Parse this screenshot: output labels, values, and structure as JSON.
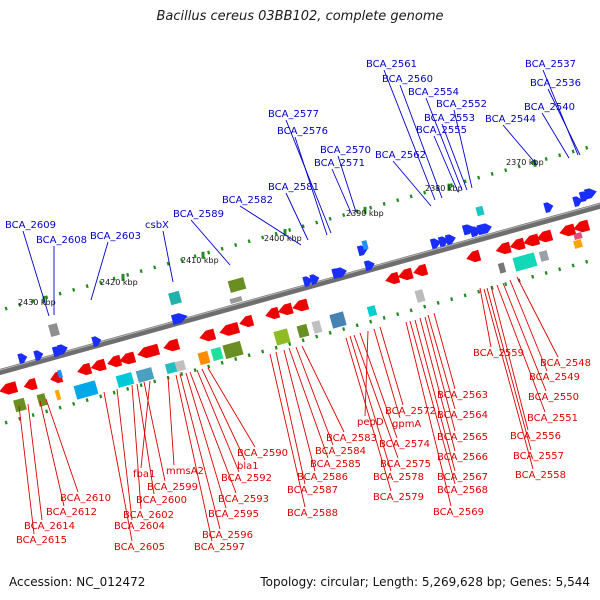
{
  "title": "Bacillus cereus 03BB102, complete genome",
  "footer": {
    "accession": "Accession: NC_012472",
    "topology": "Topology: circular; Length: 5,269,628 bp; Genes: 5,544"
  },
  "colors": {
    "forward_label": "#0000cc",
    "reverse_label": "#dd0000",
    "forward_feature": "#1a2fff",
    "reverse_feature": "#ee0000",
    "tick": "#228b22",
    "axis": "#777777"
  },
  "scale_labels": [
    "2370 kbp",
    "2380 kbp",
    "2390 kbp",
    "2400 kbp",
    "2410 kbp",
    "2420 kbp",
    "2430 kbp"
  ],
  "forward_labels": [
    "BCA_2537",
    "BCA_2536",
    "BCA_2540",
    "BCA_2544",
    "BCA_2561",
    "BCA_2560",
    "BCA_2554",
    "BCA_2552",
    "BCA_2553",
    "BCA_2555",
    "BCA_2562",
    "BCA_2577",
    "BCA_2576",
    "BCA_2570",
    "BCA_2571",
    "BCA_2581",
    "BCA_2582",
    "BCA_2589",
    "csbX",
    "BCA_2603",
    "BCA_2609",
    "BCA_2608"
  ],
  "reverse_labels": [
    "BCA_2559",
    "BCA_2548",
    "BCA_2549",
    "BCA_2550",
    "BCA_2551",
    "BCA_2556",
    "BCA_2557",
    "BCA_2558",
    "BCA_2563",
    "BCA_2564",
    "BCA_2565",
    "BCA_2566",
    "BCA_2567",
    "BCA_2568",
    "BCA_2569",
    "BCA_2572",
    "pepD",
    "gpmA",
    "BCA_2574",
    "BCA_2575",
    "BCA_2578",
    "BCA_2579",
    "BCA_2583",
    "BCA_2584",
    "BCA_2585",
    "BCA_2586",
    "BCA_2587",
    "BCA_2588",
    "BCA_2590",
    "bla1",
    "BCA_2592",
    "BCA_2593",
    "BCA_2595",
    "BCA_2596",
    "BCA_2597",
    "mmsA2",
    "fba1",
    "BCA_2599",
    "BCA_2600",
    "BCA_2602",
    "BCA_2604",
    "BCA_2605",
    "BCA_2610",
    "BCA_2612",
    "BCA_2614",
    "BCA_2615"
  ]
}
